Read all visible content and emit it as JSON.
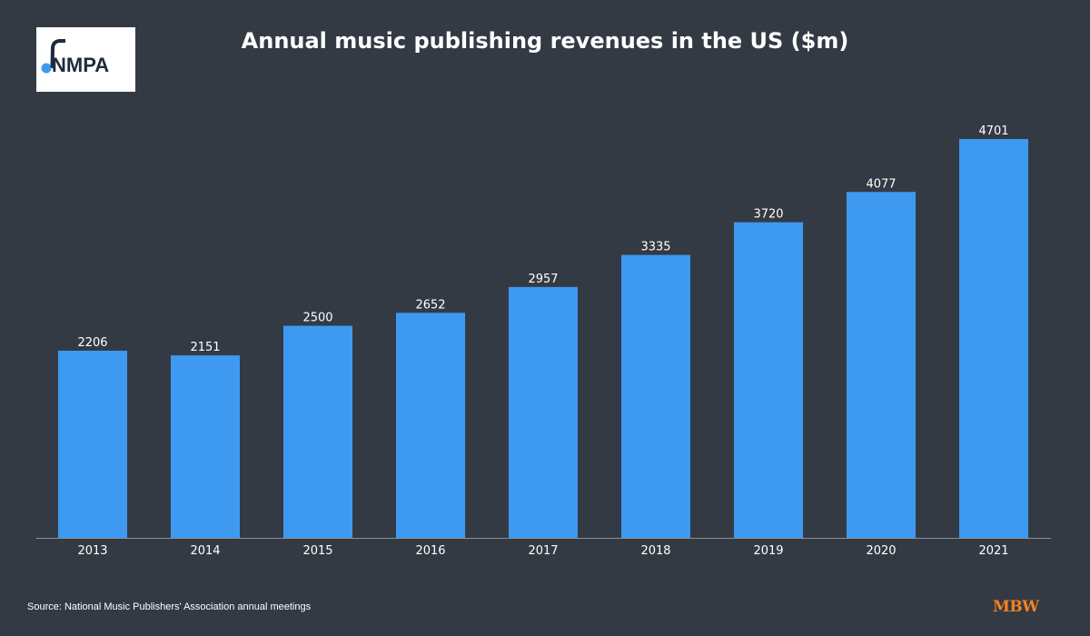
{
  "logo": {
    "text": "NMPA"
  },
  "title": "Annual music publishing revenues in the US ($m)",
  "source": "Source: National Music Publishers' Association annual meetings",
  "brand": "MBW",
  "colors": {
    "background": "#343a44",
    "bar": "#3d9af0",
    "text": "#ffffff",
    "axis": "#8a9098",
    "brand": "#f58220"
  },
  "chart_data": {
    "type": "bar",
    "title": "Annual music publishing revenues in the US ($m)",
    "categories": [
      "2013",
      "2014",
      "2015",
      "2016",
      "2017",
      "2018",
      "2019",
      "2020",
      "2021"
    ],
    "values": [
      2206,
      2151,
      2500,
      2652,
      2957,
      3335,
      3720,
      4077,
      4701
    ],
    "data_labels": true,
    "xlabel": "",
    "ylabel": "",
    "ylim": [
      0,
      4701
    ],
    "grid": false,
    "legend": "none"
  }
}
